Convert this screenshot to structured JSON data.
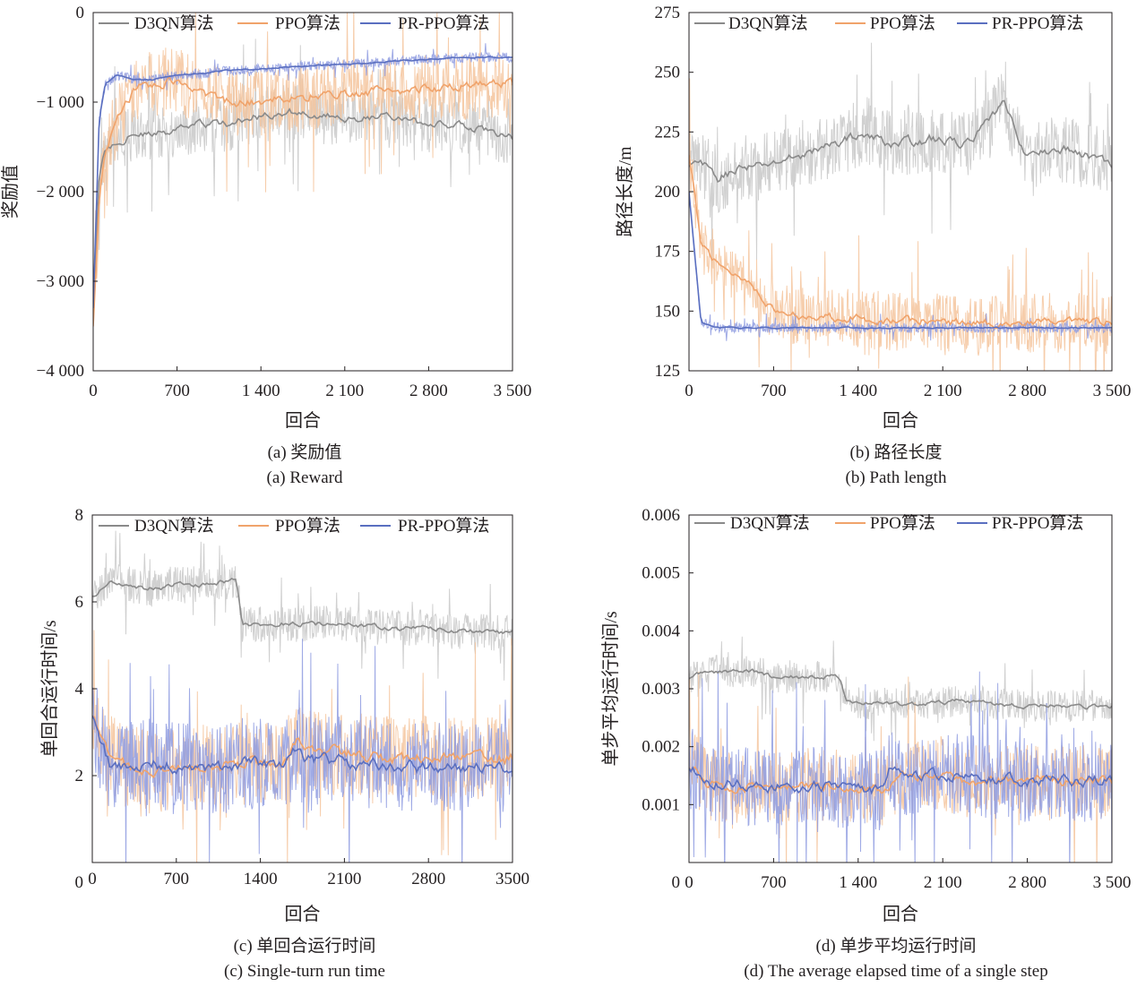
{
  "figure": {
    "panels": [
      {
        "id": "a",
        "caption_cn": "(a) 奖励值",
        "caption_en": "(a) Reward",
        "xlabel": "回合",
        "ylabel": "奖励值",
        "xlim": [
          0,
          3500
        ],
        "ylim": [
          -4000,
          0
        ],
        "xticks": [
          "0",
          "700",
          "1 400",
          "2 100",
          "2 800",
          "3 500"
        ],
        "yticks": [
          "0",
          "−1 000",
          "−2 000",
          "−3 000",
          "−4 000"
        ],
        "legend": [
          "D3QN算法",
          "PPO算法",
          "PR-PPO算法"
        ]
      },
      {
        "id": "b",
        "caption_cn": "(b) 路径长度",
        "caption_en": "(b) Path length",
        "xlabel": "回合",
        "ylabel": "路径长度/m",
        "xlim": [
          0,
          3500
        ],
        "ylim": [
          125,
          275
        ],
        "xticks": [
          "0",
          "700",
          "1 400",
          "2 100",
          "2 800",
          "3 500"
        ],
        "yticks": [
          "275",
          "250",
          "225",
          "200",
          "175",
          "150",
          "125"
        ],
        "legend": [
          "D3QN算法",
          "PPO算法",
          "PR-PPO算法"
        ]
      },
      {
        "id": "c",
        "caption_cn": "(c) 单回合运行时间",
        "caption_en": "(c) Single-turn run time",
        "xlabel": "回合",
        "ylabel": "单回合运行时间/s",
        "xlim": [
          0,
          3500
        ],
        "ylim": [
          0,
          8
        ],
        "xticks": [
          "0",
          "700",
          "1400",
          "2100",
          "2800",
          "3500"
        ],
        "yticks": [
          "8",
          "6",
          "4",
          "2"
        ],
        "legend": [
          "D3QN算法",
          "PPO算法",
          "PR-PPO算法"
        ]
      },
      {
        "id": "d",
        "caption_cn": "(d) 单步平均运行时间",
        "caption_en": "(d) The average elapsed time of a single step",
        "xlabel": "回合",
        "ylabel": "单步平均运行时间/s",
        "xlim": [
          0,
          3500
        ],
        "ylim": [
          0,
          0.006
        ],
        "xticks": [
          "0",
          "700",
          "1 400",
          "2 100",
          "2 800",
          "3 500"
        ],
        "yticks": [
          "0.006",
          "0.005",
          "0.004",
          "0.003",
          "0.002",
          "0.001"
        ],
        "legend": [
          "D3QN算法",
          "PPO算法",
          "PR-PPO算法"
        ]
      }
    ]
  },
  "chart_data": [
    {
      "type": "line",
      "panel": "a",
      "ylim": [
        -4000,
        0
      ],
      "x": [
        0,
        50,
        100,
        200,
        350,
        500,
        700,
        900,
        1100,
        1400,
        1700,
        2100,
        2450,
        2800,
        3100,
        3500
      ],
      "series": [
        {
          "name": "D3QN算法",
          "color": "#8a8a8a",
          "raw_color": "#c8c8c8",
          "noise": 450,
          "values": [
            -3300,
            -1800,
            -1500,
            -1450,
            -1350,
            -1380,
            -1300,
            -1250,
            -1250,
            -1150,
            -1100,
            -1200,
            -1150,
            -1250,
            -1250,
            -1400
          ]
        },
        {
          "name": "PPO算法",
          "color": "#f0a36b",
          "raw_color": "#f5c49c",
          "noise": 550,
          "values": [
            -3500,
            -2100,
            -1600,
            -1200,
            -850,
            -800,
            -750,
            -900,
            -1000,
            -1000,
            -950,
            -900,
            -880,
            -850,
            -820,
            -800
          ]
        },
        {
          "name": "PR-PPO算法",
          "color": "#5a6fc0",
          "raw_color": "#8e9be0",
          "noise": 80,
          "values": [
            -3300,
            -1200,
            -800,
            -700,
            -750,
            -750,
            -700,
            -680,
            -650,
            -630,
            -600,
            -580,
            -550,
            -520,
            -500,
            -500
          ]
        }
      ]
    },
    {
      "type": "line",
      "panel": "b",
      "ylim": [
        125,
        275
      ],
      "x": [
        0,
        100,
        250,
        400,
        550,
        700,
        900,
        1100,
        1400,
        1700,
        2000,
        2300,
        2500,
        2600,
        2700,
        2800,
        3100,
        3500
      ],
      "series": [
        {
          "name": "D3QN算法",
          "color": "#8a8a8a",
          "raw_color": "#c8c8c8",
          "noise": 20,
          "values": [
            210,
            212,
            205,
            210,
            210,
            212,
            215,
            218,
            224,
            220,
            222,
            220,
            230,
            238,
            225,
            215,
            218,
            212
          ]
        },
        {
          "name": "PPO算法",
          "color": "#f0a36b",
          "raw_color": "#f5c49c",
          "noise": 18,
          "values": [
            215,
            178,
            170,
            165,
            160,
            150,
            148,
            148,
            147,
            146,
            146,
            145,
            145,
            145,
            145,
            145,
            145,
            145
          ]
        },
        {
          "name": "PR-PPO算法",
          "color": "#5a6fc0",
          "raw_color": "#8e9be0",
          "noise": 3,
          "values": [
            200,
            145,
            143,
            143,
            143,
            143,
            143,
            143,
            143,
            143,
            143,
            143,
            143,
            143,
            143,
            143,
            143,
            143
          ]
        }
      ]
    },
    {
      "type": "line",
      "panel": "c",
      "ylim": [
        0,
        8
      ],
      "x": [
        0,
        150,
        300,
        500,
        700,
        900,
        1200,
        1250,
        1600,
        1700,
        1750,
        2100,
        2450,
        2800,
        3100,
        3500
      ],
      "series": [
        {
          "name": "D3QN算法",
          "color": "#8a8a8a",
          "raw_color": "#c8c8c8",
          "noise": 0.6,
          "values": [
            6.1,
            6.5,
            6.4,
            6.3,
            6.4,
            6.4,
            6.5,
            5.5,
            5.5,
            5.5,
            5.5,
            5.5,
            5.4,
            5.4,
            5.3,
            5.3
          ]
        },
        {
          "name": "PPO算法",
          "color": "#f0a36b",
          "raw_color": "#f5c49c",
          "noise": 1.4,
          "values": [
            3.3,
            2.5,
            2.2,
            2.1,
            2.2,
            2.2,
            2.3,
            2.3,
            2.3,
            2.8,
            2.6,
            2.5,
            2.4,
            2.4,
            2.4,
            2.4
          ]
        },
        {
          "name": "PR-PPO算法",
          "color": "#5a6fc0",
          "raw_color": "#8e9be0",
          "noise": 1.5,
          "values": [
            3.3,
            2.2,
            2.3,
            2.3,
            2.2,
            2.1,
            2.2,
            2.3,
            2.2,
            2.6,
            2.4,
            2.3,
            2.2,
            2.2,
            2.2,
            2.2
          ]
        }
      ]
    },
    {
      "type": "line",
      "panel": "d",
      "ylim": [
        0,
        0.006
      ],
      "x": [
        0,
        150,
        350,
        550,
        700,
        1000,
        1250,
        1300,
        1600,
        1650,
        1750,
        2100,
        2300,
        2500,
        2800,
        3100,
        3500
      ],
      "series": [
        {
          "name": "D3QN算法",
          "color": "#8a8a8a",
          "raw_color": "#c8c8c8",
          "noise": 0.0004,
          "values": [
            0.0032,
            0.0033,
            0.0033,
            0.0033,
            0.0032,
            0.0032,
            0.0032,
            0.00275,
            0.00275,
            0.00275,
            0.00275,
            0.00275,
            0.0028,
            0.00275,
            0.0027,
            0.0027,
            0.0027
          ]
        },
        {
          "name": "PPO算法",
          "color": "#f0a36b",
          "raw_color": "#f5c49c",
          "noise": 0.0009,
          "values": [
            0.0017,
            0.00135,
            0.0013,
            0.0013,
            0.0013,
            0.0013,
            0.00135,
            0.00125,
            0.00125,
            0.00135,
            0.0015,
            0.0015,
            0.0014,
            0.0014,
            0.0014,
            0.0014,
            0.0014
          ]
        },
        {
          "name": "PR-PPO算法",
          "color": "#5a6fc0",
          "raw_color": "#8e9be0",
          "noise": 0.001,
          "values": [
            0.0017,
            0.0014,
            0.00135,
            0.0013,
            0.0013,
            0.0013,
            0.0013,
            0.00125,
            0.00125,
            0.0016,
            0.0015,
            0.0015,
            0.00155,
            0.00145,
            0.0014,
            0.0014,
            0.0014
          ]
        }
      ]
    }
  ]
}
